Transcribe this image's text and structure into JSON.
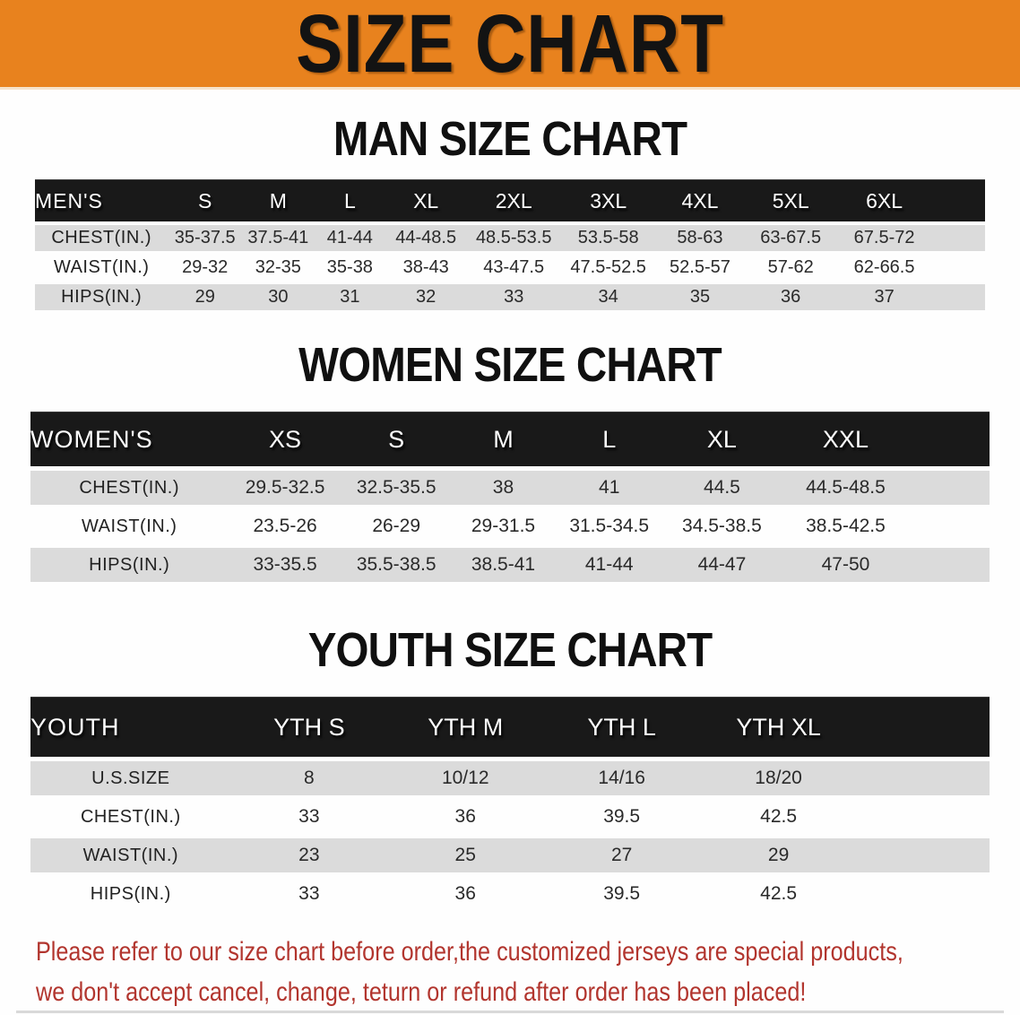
{
  "banner": {
    "title": "SIZE CHART",
    "bg_color": "#E8821E"
  },
  "chart_data": [
    {
      "type": "table",
      "title": "MAN SIZE CHART",
      "corner_label": "MEN'S",
      "columns": [
        "S",
        "M",
        "L",
        "XL",
        "2XL",
        "3XL",
        "4XL",
        "5XL",
        "6XL"
      ],
      "rows": [
        {
          "label": "CHEST(IN.)",
          "values": [
            "35-37.5",
            "37.5-41",
            "41-44",
            "44-48.5",
            "48.5-53.5",
            "53.5-58",
            "58-63",
            "63-67.5",
            "67.5-72"
          ]
        },
        {
          "label": "WAIST(IN.)",
          "values": [
            "29-32",
            "32-35",
            "35-38",
            "38-43",
            "43-47.5",
            "47.5-52.5",
            "52.5-57",
            "57-62",
            "62-66.5"
          ]
        },
        {
          "label": "HIPS(IN.)",
          "values": [
            "29",
            "30",
            "31",
            "32",
            "33",
            "34",
            "35",
            "36",
            "37"
          ]
        }
      ]
    },
    {
      "type": "table",
      "title": "WOMEN SIZE CHART",
      "corner_label": "WOMEN'S",
      "columns": [
        "XS",
        "S",
        "M",
        "L",
        "XL",
        "XXL"
      ],
      "rows": [
        {
          "label": "CHEST(IN.)",
          "values": [
            "29.5-32.5",
            "32.5-35.5",
            "38",
            "41",
            "44.5",
            "44.5-48.5"
          ]
        },
        {
          "label": "WAIST(IN.)",
          "values": [
            "23.5-26",
            "26-29",
            "29-31.5",
            "31.5-34.5",
            "34.5-38.5",
            "38.5-42.5"
          ]
        },
        {
          "label": "HIPS(IN.)",
          "values": [
            "33-35.5",
            "35.5-38.5",
            "38.5-41",
            "41-44",
            "44-47",
            "47-50"
          ]
        }
      ]
    },
    {
      "type": "table",
      "title": "YOUTH SIZE CHART",
      "corner_label": "YOUTH",
      "columns": [
        "YTH S",
        "YTH M",
        "YTH L",
        "YTH XL"
      ],
      "rows": [
        {
          "label": "U.S.SIZE",
          "values": [
            "8",
            "10/12",
            "14/16",
            "18/20"
          ]
        },
        {
          "label": "CHEST(IN.)",
          "values": [
            "33",
            "36",
            "39.5",
            "42.5"
          ]
        },
        {
          "label": "WAIST(IN.)",
          "values": [
            "23",
            "25",
            "27",
            "29"
          ]
        },
        {
          "label": "HIPS(IN.)",
          "values": [
            "33",
            "36",
            "39.5",
            "42.5"
          ]
        }
      ]
    }
  ],
  "disclaimer": {
    "color": "#B2352E",
    "lines": [
      "Please refer to our size chart before order,the customized jerseys are special products,",
      "we don't accept cancel, change, teturn or refund after order has been placed!"
    ]
  }
}
